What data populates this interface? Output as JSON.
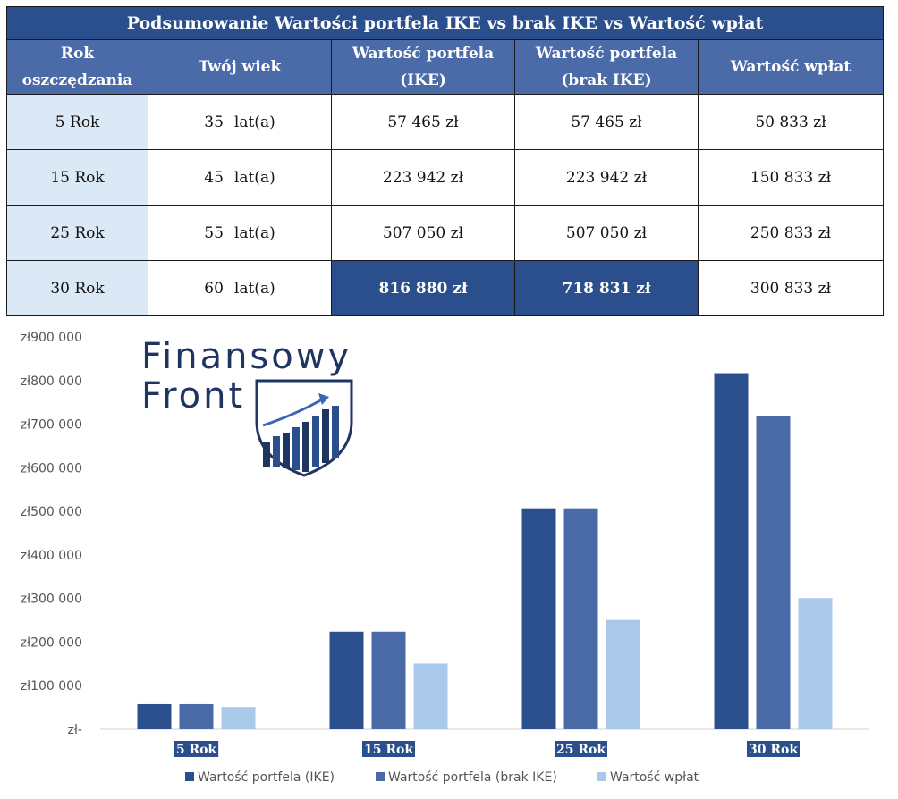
{
  "table": {
    "title": "Podsumowanie Wartości portfela IKE vs brak IKE vs Wartość wpłat",
    "headers": {
      "year_line1": "Rok",
      "year_line2": "oszczędzania",
      "age": "Twój wiek",
      "ike_line1": "Wartość portfela",
      "ike_line2": "(IKE)",
      "noike_line1": "Wartość portfela",
      "noike_line2": "(brak IKE)",
      "deposits": "Wartość wpłat"
    },
    "rows": [
      {
        "year": "5 Rok",
        "age": "35",
        "age_unit": "lat(a)",
        "ike": "57 465 zł",
        "noike": "57 465 zł",
        "deposits": "50 833 zł"
      },
      {
        "year": "15 Rok",
        "age": "45",
        "age_unit": "lat(a)",
        "ike": "223 942 zł",
        "noike": "223 942 zł",
        "deposits": "150 833 zł"
      },
      {
        "year": "25 Rok",
        "age": "55",
        "age_unit": "lat(a)",
        "ike": "507 050 zł",
        "noike": "507 050 zł",
        "deposits": "250 833 zł"
      },
      {
        "year": "30 Rok",
        "age": "60",
        "age_unit": "lat(a)",
        "ike": "816 880 zł",
        "noike": "718 831 zł",
        "deposits": "300 833 zł"
      }
    ]
  },
  "logo": {
    "line1": "Finansowy",
    "line2": "Front"
  },
  "chart_data": {
    "type": "bar",
    "categories": [
      "5 Rok",
      "15 Rok",
      "25 Rok",
      "30 Rok"
    ],
    "series": [
      {
        "name": "Wartość portfela (IKE)",
        "values": [
          57465,
          223942,
          507050,
          816880
        ],
        "color": "#2b4f8c"
      },
      {
        "name": "Wartość portfela (brak IKE)",
        "values": [
          57465,
          223942,
          507050,
          718831
        ],
        "color": "#4a6aa8"
      },
      {
        "name": "Wartość wpłat",
        "values": [
          50833,
          150833,
          250833,
          300833
        ],
        "color": "#a9c8ea"
      }
    ],
    "ylim": [
      0,
      900000
    ],
    "yticks": [
      "zł-",
      "zł100 000",
      "zł200 000",
      "zł300 000",
      "zł400 000",
      "zł500 000",
      "zł600 000",
      "zł700 000",
      "zł800 000",
      "zł900 000"
    ],
    "grid": false,
    "legend_position": "bottom"
  }
}
